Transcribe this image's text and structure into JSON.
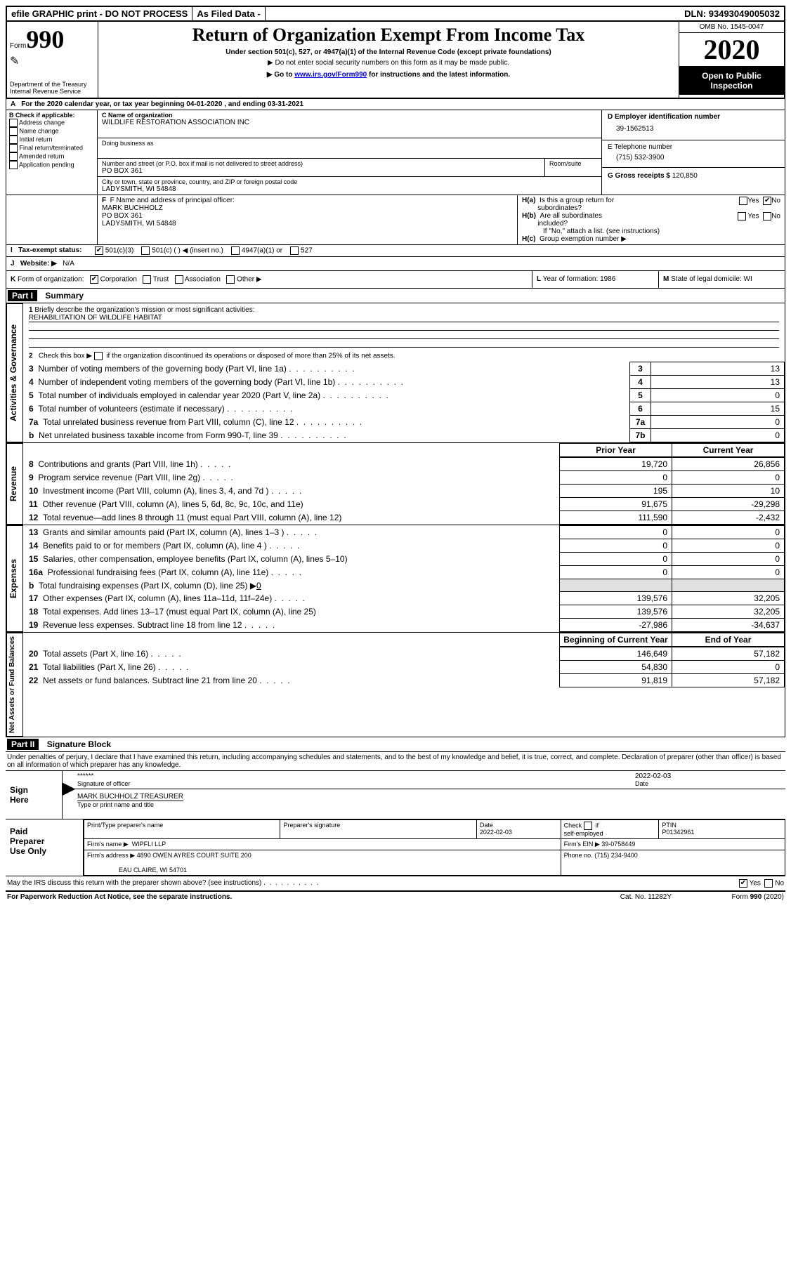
{
  "header": {
    "efile_left": "efile GRAPHIC print - DO NOT PROCESS",
    "efile_mid": "As Filed Data -",
    "dln_label": "DLN:",
    "dln": "93493049005032",
    "form_label": "Form",
    "form_num": "990",
    "dept": "Department of the Treasury",
    "irs": "Internal Revenue Service",
    "title": "Return of Organization Exempt From Income Tax",
    "subtitle": "Under section 501(c), 527, or 4947(a)(1) of the Internal Revenue Code (except private foundations)",
    "note1": "▶ Do not enter social security numbers on this form as it may be made public.",
    "note2_pre": "▶ Go to ",
    "note2_link": "www.irs.gov/Form990",
    "note2_post": " for instructions and the latest information.",
    "omb_label": "OMB No. 1545-0047",
    "year": "2020",
    "open_public": "Open to Public Inspection"
  },
  "a_line": "For the 2020 calendar year, or tax year beginning 04-01-2020   , and ending 03-31-2021",
  "box_b": {
    "label": "B Check if applicable:",
    "items": [
      "Address change",
      "Name change",
      "Initial return",
      "Final return/terminated",
      "Amended return",
      "Application pending"
    ]
  },
  "box_c": {
    "label": "C Name of organization",
    "name": "WILDLIFE RESTORATION ASSOCIATION INC",
    "dba_label": "Doing business as",
    "dba": "",
    "street_label": "Number and street (or P.O. box if mail is not delivered to street address)",
    "room_label": "Room/suite",
    "street": "PO BOX 361",
    "city_label": "City or town, state or province, country, and ZIP or foreign postal code",
    "city": "LADYSMITH, WI  54848"
  },
  "box_d": {
    "label": "D Employer identification number",
    "value": "39-1562513"
  },
  "box_e": {
    "label": "E Telephone number",
    "value": "(715) 532-3900"
  },
  "box_g": {
    "label": "G Gross receipts $",
    "value": "120,850"
  },
  "box_f": {
    "label": "F  Name and address of principal officer:",
    "name": "MARK BUCHHOLZ",
    "addr1": "PO BOX 361",
    "addr2": "LADYSMITH, WI  54848"
  },
  "box_h": {
    "ha_label": "H(a)  Is this a group return for",
    "ha_sub": "subordinates?",
    "hb_label": "H(b)  Are all subordinates included?",
    "hb_note": "If \"No,\" attach a list. (see instructions)",
    "hc_label": "H(c)  Group exemption number ▶",
    "yes": "Yes",
    "no": "No"
  },
  "box_i": {
    "label": "I    Tax-exempt status:",
    "opt1": "501(c)(3)",
    "opt2": "501(c) (   ) ◀ (insert no.)",
    "opt3": "4947(a)(1) or",
    "opt4": "527"
  },
  "box_j": {
    "label": "J   Website: ▶",
    "value": "N/A"
  },
  "box_k": {
    "label": "K Form of organization:",
    "opts": [
      "Corporation",
      "Trust",
      "Association",
      "Other ▶"
    ]
  },
  "box_l": {
    "label": "L Year of formation:",
    "value": "1986"
  },
  "box_m": {
    "label": "M State of legal domicile:",
    "value": "WI"
  },
  "part1": {
    "label": "Part I",
    "title": "Summary",
    "line1a": "1 Briefly describe the organization's mission or most significant activities:",
    "line1b": "REHABILITATION OF WILDLIFE HABITAT",
    "line2": "2   Check this box ▶ ☐  if the organization discontinued its operations or disposed of more than 25% of its net assets.",
    "tab_ag": "Activities & Governance",
    "tab_rev": "Revenue",
    "tab_exp": "Expenses",
    "tab_na": "Net Assets or Fund Balances",
    "hdr_prior": "Prior Year",
    "hdr_curr": "Current Year",
    "hdr_boy": "Beginning of Current Year",
    "hdr_eoy": "End of Year",
    "rows_gov": [
      {
        "n": "3",
        "t": "Number of voting members of the governing body (Part VI, line 1a)",
        "num": "3",
        "v": "13",
        "dots": 1
      },
      {
        "n": "4",
        "t": "Number of independent voting members of the governing body (Part VI, line 1b)",
        "num": "4",
        "v": "13",
        "dots": 1
      },
      {
        "n": "5",
        "t": "Total number of individuals employed in calendar year 2020 (Part V, line 2a)",
        "num": "5",
        "v": "0",
        "dots": 1
      },
      {
        "n": "6",
        "t": "Total number of volunteers (estimate if necessary)",
        "num": "6",
        "v": "15",
        "dots": 1
      },
      {
        "n": "7a",
        "t": "Total unrelated business revenue from Part VIII, column (C), line 12",
        "num": "7a",
        "v": "0",
        "dots": 1
      },
      {
        "n": "b",
        "t": "Net unrelated business taxable income from Form 990-T, line 39",
        "num": "7b",
        "v": "0",
        "dots": 1
      }
    ],
    "rows_rev": [
      {
        "n": "8",
        "t": "Contributions and grants (Part VIII, line 1h)",
        "p": "19,720",
        "c": "26,856",
        "dots": 1
      },
      {
        "n": "9",
        "t": "Program service revenue (Part VIII, line 2g)",
        "p": "0",
        "c": "0",
        "dots": 1
      },
      {
        "n": "10",
        "t": "Investment income (Part VIII, column (A), lines 3, 4, and 7d )",
        "p": "195",
        "c": "10",
        "dots": 1
      },
      {
        "n": "11",
        "t": "Other revenue (Part VIII, column (A), lines 5, 6d, 8c, 9c, 10c, and 11e)",
        "p": "91,675",
        "c": "-29,298",
        "dots": 0
      },
      {
        "n": "12",
        "t": "Total revenue—add lines 8 through 11 (must equal Part VIII, column (A), line 12)",
        "p": "111,590",
        "c": "-2,432",
        "dots": 0
      }
    ],
    "rows_exp": [
      {
        "n": "13",
        "t": "Grants and similar amounts paid (Part IX, column (A), lines 1–3 )",
        "p": "0",
        "c": "0",
        "dots": 1
      },
      {
        "n": "14",
        "t": "Benefits paid to or for members (Part IX, column (A), line 4 )",
        "p": "0",
        "c": "0",
        "dots": 1
      },
      {
        "n": "15",
        "t": "Salaries, other compensation, employee benefits (Part IX, column (A), lines 5–10)",
        "p": "0",
        "c": "0",
        "dots": 0
      },
      {
        "n": "16a",
        "t": "Professional fundraising fees (Part IX, column (A), line 11e)",
        "p": "0",
        "c": "0",
        "dots": 1
      },
      {
        "n": "b",
        "t": "Total fundraising expenses (Part IX, column (D), line 25) ▶0",
        "p": "",
        "c": "",
        "dots": 0,
        "small": 1
      },
      {
        "n": "17",
        "t": "Other expenses (Part IX, column (A), lines 11a–11d, 11f–24e)",
        "p": "139,576",
        "c": "32,205",
        "dots": 1
      },
      {
        "n": "18",
        "t": "Total expenses. Add lines 13–17 (must equal Part IX, column (A), line 25)",
        "p": "139,576",
        "c": "32,205",
        "dots": 0
      },
      {
        "n": "19",
        "t": "Revenue less expenses. Subtract line 18 from line 12",
        "p": "-27,986",
        "c": "-34,637",
        "dots": 1
      }
    ],
    "rows_na": [
      {
        "n": "20",
        "t": "Total assets (Part X, line 16)",
        "p": "146,649",
        "c": "57,182",
        "dots": 1
      },
      {
        "n": "21",
        "t": "Total liabilities (Part X, line 26)",
        "p": "54,830",
        "c": "0",
        "dots": 1
      },
      {
        "n": "22",
        "t": "Net assets or fund balances. Subtract line 21 from line 20",
        "p": "91,819",
        "c": "57,182",
        "dots": 1
      }
    ]
  },
  "part2": {
    "label": "Part II",
    "title": "Signature Block",
    "decl": "Under penalties of perjury, I declare that I have examined this return, including accompanying schedules and statements, and to the best of my knowledge and belief, it is true, correct, and complete. Declaration of preparer (other than officer) is based on all information of which preparer has any knowledge.",
    "sign": "Sign Here",
    "sig_stars": "******",
    "sig_of_officer": "Signature of officer",
    "sig_date": "2022-02-03",
    "date_lbl": "Date",
    "sig_name": "MARK BUCHHOLZ TREASURER",
    "sig_type": "Type or print name and title",
    "paid": "Paid Preparer Use Only",
    "prep_name_lbl": "Print/Type preparer's name",
    "prep_sig_lbl": "Preparer's signature",
    "prep_date": "2022-02-03",
    "prep_check": "Check ☐  if self-employed",
    "ptin_lbl": "PTIN",
    "ptin": "P01342961",
    "firm_name_lbl": "Firm's name   ▶",
    "firm_name": "WIPFLI LLP",
    "firm_ein_lbl": "Firm's EIN ▶",
    "firm_ein": "39-0758449",
    "firm_addr_lbl": "Firm's address ▶",
    "firm_addr1": "4890 OWEN AYRES COURT SUITE 200",
    "firm_addr2": "EAU CLAIRE, WI  54701",
    "phone_lbl": "Phone no.",
    "phone": "(715) 234-9400",
    "may_discuss": "May the IRS discuss this return with the preparer shown above? (see instructions)"
  },
  "footer": {
    "paperwork": "For Paperwork Reduction Act Notice, see the separate instructions.",
    "cat": "Cat. No. 11282Y",
    "form": "Form 990 (2020)"
  }
}
